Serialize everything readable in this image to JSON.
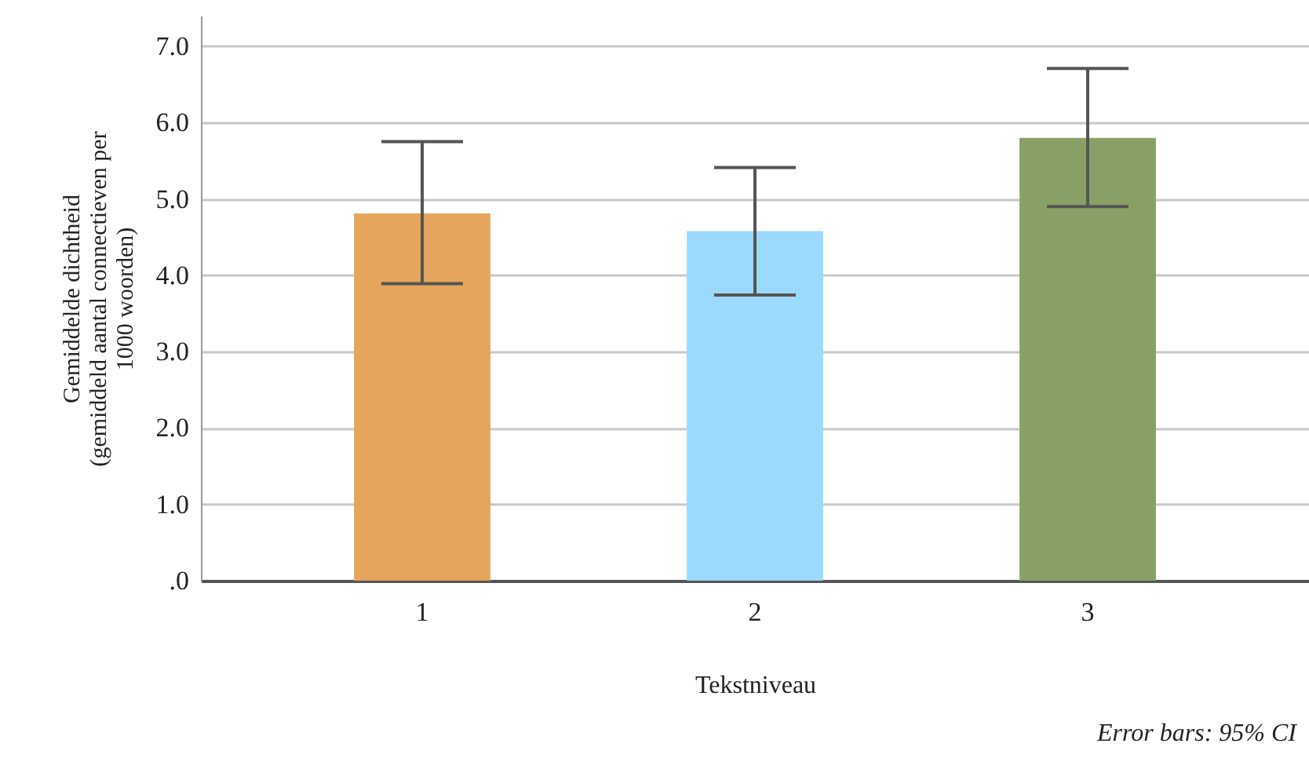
{
  "chart_data": {
    "type": "bar",
    "xlabel": "Tekstniveau",
    "ylabel": "Gemiddelde dichtheid\n(gemiddeld aantal connectieven per\n1000 woorden)",
    "categories": [
      "1",
      "2",
      "3"
    ],
    "values": [
      4.81,
      4.58,
      5.8
    ],
    "colors": [
      "#e5a55c",
      "#9cdafd",
      "#88a065"
    ],
    "errors": [
      [
        3.89,
        5.75
      ],
      [
        3.74,
        5.41
      ],
      [
        4.9,
        6.71
      ]
    ],
    "ylim": [
      0,
      7.4
    ],
    "yticks": [
      {
        "value": 0,
        "label": ".0"
      },
      {
        "value": 1,
        "label": "1.0"
      },
      {
        "value": 2,
        "label": "2.0"
      },
      {
        "value": 3,
        "label": "3.0"
      },
      {
        "value": 4,
        "label": "4.0"
      },
      {
        "value": 5,
        "label": "5.0"
      },
      {
        "value": 6,
        "label": "6.0"
      },
      {
        "value": 7,
        "label": "7.0"
      }
    ],
    "grid": "y",
    "annotations": [
      "Error bars: 95% CI"
    ]
  }
}
